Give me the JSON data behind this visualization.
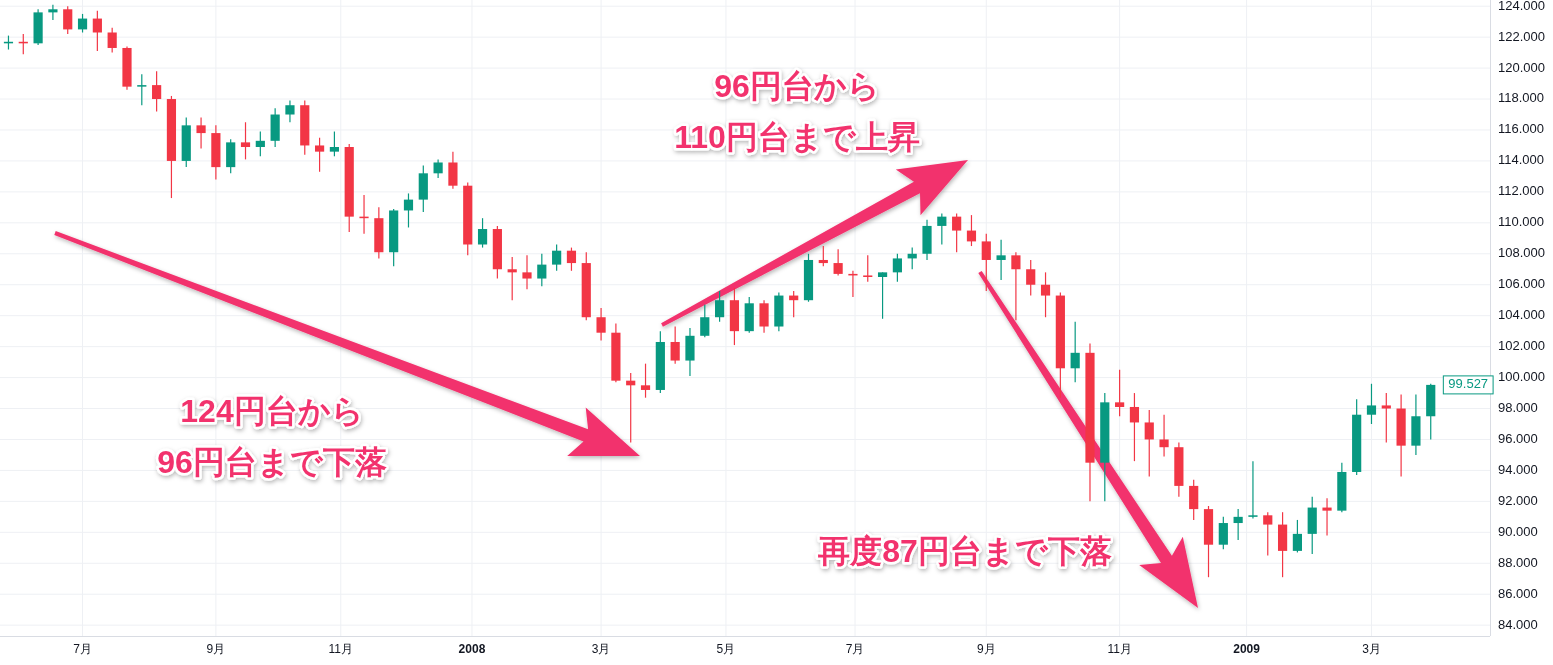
{
  "chart_data": {
    "type": "candlestick",
    "x": [
      "2007-05-28",
      "2007-06-04",
      "2007-06-11",
      "2007-06-18",
      "2007-06-25",
      "2007-07-02",
      "2007-07-09",
      "2007-07-16",
      "2007-07-23",
      "2007-07-30",
      "2007-08-06",
      "2007-08-13",
      "2007-08-20",
      "2007-08-27",
      "2007-09-03",
      "2007-09-10",
      "2007-09-17",
      "2007-09-24",
      "2007-10-01",
      "2007-10-08",
      "2007-10-15",
      "2007-10-22",
      "2007-10-29",
      "2007-11-05",
      "2007-11-12",
      "2007-11-19",
      "2007-11-26",
      "2007-12-03",
      "2007-12-10",
      "2007-12-17",
      "2007-12-24",
      "2007-12-31",
      "2008-01-07",
      "2008-01-14",
      "2008-01-21",
      "2008-01-28",
      "2008-02-04",
      "2008-02-11",
      "2008-02-18",
      "2008-02-25",
      "2008-03-03",
      "2008-03-10",
      "2008-03-17",
      "2008-03-24",
      "2008-03-31",
      "2008-04-07",
      "2008-04-14",
      "2008-04-21",
      "2008-04-28",
      "2008-05-05",
      "2008-05-12",
      "2008-05-19",
      "2008-05-26",
      "2008-06-02",
      "2008-06-09",
      "2008-06-16",
      "2008-06-23",
      "2008-06-30",
      "2008-07-07",
      "2008-07-14",
      "2008-07-21",
      "2008-07-28",
      "2008-08-04",
      "2008-08-11",
      "2008-08-18",
      "2008-08-25",
      "2008-09-01",
      "2008-09-08",
      "2008-09-15",
      "2008-09-22",
      "2008-09-29",
      "2008-10-06",
      "2008-10-13",
      "2008-10-20",
      "2008-10-27",
      "2008-11-03",
      "2008-11-10",
      "2008-11-17",
      "2008-11-24",
      "2008-12-01",
      "2008-12-08",
      "2008-12-15",
      "2008-12-22",
      "2008-12-29",
      "2009-01-05",
      "2009-01-12",
      "2009-01-19",
      "2009-01-26",
      "2009-02-02",
      "2009-02-09",
      "2009-02-16",
      "2009-02-23",
      "2009-03-02",
      "2009-03-09",
      "2009-03-16",
      "2009-03-23",
      "2009-03-30"
    ],
    "ohlc": [
      [
        121.6,
        122.1,
        121.2,
        121.7
      ],
      [
        121.7,
        122.2,
        120.9,
        121.6
      ],
      [
        121.6,
        123.8,
        121.5,
        123.6
      ],
      [
        123.6,
        124.1,
        123.1,
        123.8
      ],
      [
        123.8,
        124.0,
        122.2,
        122.5
      ],
      [
        122.5,
        123.5,
        122.3,
        123.2
      ],
      [
        123.2,
        123.7,
        121.1,
        122.3
      ],
      [
        122.3,
        122.6,
        121.0,
        121.3
      ],
      [
        121.3,
        121.4,
        118.6,
        118.8
      ],
      [
        118.8,
        119.6,
        117.6,
        118.9
      ],
      [
        118.9,
        119.8,
        117.2,
        118.0
      ],
      [
        118.0,
        118.2,
        111.6,
        114.0
      ],
      [
        114.0,
        116.8,
        113.6,
        116.3
      ],
      [
        116.3,
        116.8,
        114.8,
        115.8
      ],
      [
        115.8,
        116.3,
        112.8,
        113.6
      ],
      [
        113.6,
        115.4,
        113.2,
        115.2
      ],
      [
        115.2,
        116.5,
        114.1,
        114.9
      ],
      [
        114.9,
        115.9,
        114.3,
        115.3
      ],
      [
        115.3,
        117.4,
        114.9,
        117.0
      ],
      [
        117.0,
        117.9,
        116.5,
        117.6
      ],
      [
        117.6,
        117.9,
        114.4,
        115.0
      ],
      [
        115.0,
        115.5,
        113.3,
        114.6
      ],
      [
        114.6,
        115.9,
        114.3,
        114.9
      ],
      [
        114.9,
        115.1,
        109.4,
        110.4
      ],
      [
        110.4,
        111.8,
        109.3,
        110.3
      ],
      [
        110.3,
        111.0,
        107.7,
        108.1
      ],
      [
        108.1,
        110.9,
        107.2,
        110.8
      ],
      [
        110.8,
        111.9,
        109.7,
        111.5
      ],
      [
        111.5,
        113.7,
        110.7,
        113.2
      ],
      [
        113.2,
        114.1,
        112.9,
        113.9
      ],
      [
        113.9,
        114.6,
        112.2,
        112.4
      ],
      [
        112.4,
        112.6,
        107.9,
        108.6
      ],
      [
        108.6,
        110.3,
        108.4,
        109.6
      ],
      [
        109.6,
        109.8,
        106.4,
        107.0
      ],
      [
        107.0,
        107.8,
        105.0,
        106.8
      ],
      [
        106.8,
        107.9,
        105.7,
        106.4
      ],
      [
        106.4,
        108.0,
        105.9,
        107.3
      ],
      [
        107.3,
        108.6,
        106.9,
        108.2
      ],
      [
        108.2,
        108.4,
        106.9,
        107.4
      ],
      [
        107.4,
        108.1,
        103.7,
        103.9
      ],
      [
        103.9,
        104.5,
        102.4,
        102.9
      ],
      [
        102.9,
        103.5,
        99.7,
        99.8
      ],
      [
        99.8,
        100.3,
        95.8,
        99.5
      ],
      [
        99.5,
        100.9,
        98.7,
        99.2
      ],
      [
        99.2,
        103.0,
        99.0,
        102.3
      ],
      [
        102.3,
        103.3,
        100.9,
        101.1
      ],
      [
        101.1,
        103.2,
        100.1,
        102.7
      ],
      [
        102.7,
        104.7,
        102.6,
        103.9
      ],
      [
        103.9,
        105.6,
        103.6,
        105.0
      ],
      [
        105.0,
        105.8,
        102.1,
        103.0
      ],
      [
        103.0,
        105.2,
        102.9,
        104.8
      ],
      [
        104.8,
        105.0,
        102.9,
        103.3
      ],
      [
        103.3,
        105.5,
        103.0,
        105.3
      ],
      [
        105.3,
        105.6,
        103.9,
        105.0
      ],
      [
        105.0,
        108.0,
        104.9,
        107.6
      ],
      [
        107.6,
        108.5,
        107.2,
        107.4
      ],
      [
        107.4,
        108.3,
        106.6,
        106.7
      ],
      [
        106.7,
        106.9,
        105.2,
        106.6
      ],
      [
        106.6,
        107.9,
        106.2,
        106.5
      ],
      [
        106.5,
        106.8,
        103.8,
        106.8
      ],
      [
        106.8,
        108.0,
        106.2,
        107.7
      ],
      [
        107.7,
        108.4,
        107.0,
        108.0
      ],
      [
        108.0,
        110.2,
        107.6,
        109.8
      ],
      [
        109.8,
        110.6,
        108.6,
        110.4
      ],
      [
        110.4,
        110.6,
        108.1,
        109.5
      ],
      [
        109.5,
        110.5,
        108.5,
        108.8
      ],
      [
        108.8,
        109.3,
        105.6,
        107.6
      ],
      [
        107.6,
        108.9,
        106.3,
        107.9
      ],
      [
        107.9,
        108.1,
        103.7,
        107.0
      ],
      [
        107.0,
        107.6,
        105.3,
        106.0
      ],
      [
        106.0,
        106.8,
        103.9,
        105.3
      ],
      [
        105.3,
        105.5,
        98.7,
        100.6
      ],
      [
        100.6,
        103.6,
        99.7,
        101.6
      ],
      [
        101.6,
        102.2,
        92.0,
        94.5
      ],
      [
        94.5,
        99.0,
        92.0,
        98.4
      ],
      [
        98.4,
        100.5,
        97.5,
        98.1
      ],
      [
        98.1,
        99.0,
        94.6,
        97.1
      ],
      [
        97.1,
        97.9,
        93.6,
        96.0
      ],
      [
        96.0,
        97.6,
        94.9,
        95.5
      ],
      [
        95.5,
        95.8,
        92.3,
        93.0
      ],
      [
        93.0,
        93.4,
        90.8,
        91.5
      ],
      [
        91.5,
        91.7,
        87.1,
        89.2
      ],
      [
        89.2,
        91.0,
        88.9,
        90.6
      ],
      [
        90.6,
        91.5,
        89.5,
        91.0
      ],
      [
        91.0,
        94.6,
        90.9,
        91.1
      ],
      [
        91.1,
        91.3,
        88.5,
        90.5
      ],
      [
        90.5,
        91.3,
        87.1,
        88.8
      ],
      [
        88.8,
        90.8,
        88.7,
        89.9
      ],
      [
        89.9,
        92.3,
        88.6,
        91.6
      ],
      [
        91.6,
        92.2,
        89.8,
        91.4
      ],
      [
        91.4,
        94.5,
        91.3,
        93.9
      ],
      [
        93.9,
        98.6,
        93.7,
        97.6
      ],
      [
        97.6,
        99.6,
        97.0,
        98.2
      ],
      [
        98.2,
        99.0,
        95.8,
        98.0
      ],
      [
        98.0,
        98.9,
        93.6,
        95.6
      ],
      [
        95.6,
        98.9,
        95.0,
        97.5
      ],
      [
        97.5,
        99.6,
        96.0,
        99.527
      ]
    ],
    "colors": [
      "#089981",
      "#f23645",
      "#089981",
      "#089981",
      "#f23645",
      "#089981",
      "#f23645",
      "#f23645",
      "#f23645",
      "#089981",
      "#f23645",
      "#f23645",
      "#089981",
      "#f23645",
      "#f23645",
      "#089981",
      "#f23645",
      "#089981",
      "#089981",
      "#089981",
      "#f23645",
      "#f23645",
      "#089981",
      "#f23645",
      "#f23645",
      "#f23645",
      "#089981",
      "#089981",
      "#089981",
      "#089981",
      "#f23645",
      "#f23645",
      "#089981",
      "#f23645",
      "#f23645",
      "#f23645",
      "#089981",
      "#089981",
      "#f23645",
      "#f23645",
      "#f23645",
      "#f23645",
      "#f23645",
      "#f23645",
      "#089981",
      "#f23645",
      "#089981",
      "#089981",
      "#089981",
      "#f23645",
      "#089981",
      "#f23645",
      "#089981",
      "#f23645",
      "#089981",
      "#f23645",
      "#f23645",
      "#f23645",
      "#f23645",
      "#089981",
      "#089981",
      "#089981",
      "#089981",
      "#089981",
      "#f23645",
      "#f23645",
      "#f23645",
      "#089981",
      "#f23645",
      "#f23645",
      "#f23645",
      "#f23645",
      "#089981",
      "#f23645",
      "#089981",
      "#f23645",
      "#f23645",
      "#f23645",
      "#f23645",
      "#f23645",
      "#f23645",
      "#f23645",
      "#089981",
      "#089981",
      "#089981",
      "#f23645",
      "#f23645",
      "#089981",
      "#089981",
      "#f23645",
      "#089981",
      "#089981",
      "#089981",
      "#f23645",
      "#f23645",
      "#089981",
      "#089981"
    ],
    "xlim": [
      "2007-05-24",
      "2009-04-27"
    ],
    "xticks": [
      {
        "value": "2007-07-02",
        "label": "7月"
      },
      {
        "value": "2007-09-03",
        "label": "9月"
      },
      {
        "value": "2007-11-01",
        "label": "11月"
      },
      {
        "value": "2008-01-02",
        "label": "2008"
      },
      {
        "value": "2008-03-03",
        "label": "3月"
      },
      {
        "value": "2008-05-01",
        "label": "5月"
      },
      {
        "value": "2008-07-01",
        "label": "7月"
      },
      {
        "value": "2008-09-01",
        "label": "9月"
      },
      {
        "value": "2008-11-03",
        "label": "11月"
      },
      {
        "value": "2009-01-02",
        "label": "2009"
      },
      {
        "value": "2009-03-02",
        "label": "3月"
      }
    ],
    "ylim": [
      83.3,
      124.4
    ],
    "yticks": [
      {
        "value": 84,
        "label": "84.000"
      },
      {
        "value": 86,
        "label": "86.000"
      },
      {
        "value": 88,
        "label": "88.000"
      },
      {
        "value": 90,
        "label": "90.000"
      },
      {
        "value": 92,
        "label": "92.000"
      },
      {
        "value": 94,
        "label": "94.000"
      },
      {
        "value": 96,
        "label": "96.000"
      },
      {
        "value": 98,
        "label": "98.000"
      },
      {
        "value": 100,
        "label": "100.000"
      },
      {
        "value": 102,
        "label": "102.000"
      },
      {
        "value": 104,
        "label": "104.000"
      },
      {
        "value": 106,
        "label": "106.000"
      },
      {
        "value": 108,
        "label": "108.000"
      },
      {
        "value": 110,
        "label": "110.000"
      },
      {
        "value": 112,
        "label": "112.000"
      },
      {
        "value": 114,
        "label": "114.000"
      },
      {
        "value": 116,
        "label": "116.000"
      },
      {
        "value": 118,
        "label": "118.000"
      },
      {
        "value": 120,
        "label": "120.000"
      },
      {
        "value": 122,
        "label": "122.000"
      },
      {
        "value": 124,
        "label": "124.000"
      }
    ],
    "grid": true,
    "annotations": [
      "124円台から\n96円台まで下落",
      "96円台から\n110円台まで上昇",
      "再度87円台まで下落",
      {
        "text": "99.527",
        "x": "2009-03-30",
        "y": 99.527
      }
    ]
  }
}
